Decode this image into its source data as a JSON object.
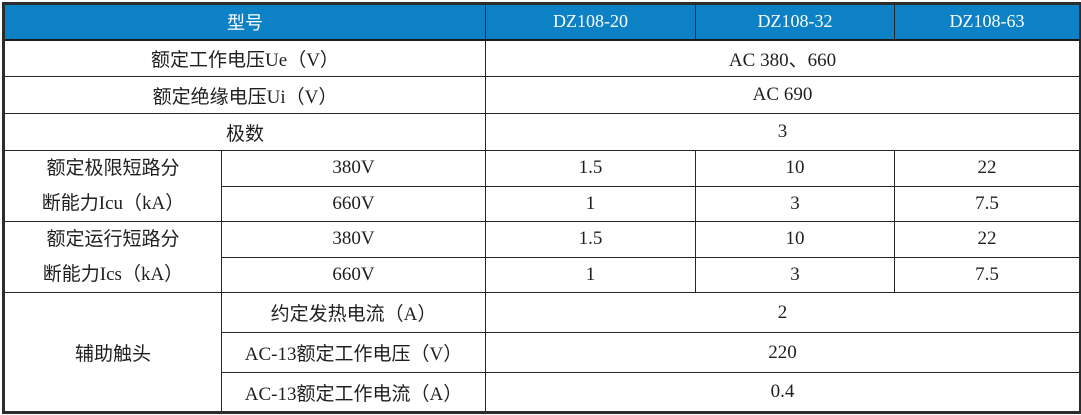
{
  "colors": {
    "header_bg": "#0d81c6",
    "header_text": "#ffffff",
    "border": "#262626",
    "body_text": "#1f1f1f"
  },
  "table": {
    "header": {
      "model_label": "型号",
      "columns": [
        "DZ108-20",
        "DZ108-32",
        "DZ108-63"
      ]
    },
    "rows": {
      "ue": {
        "label": "额定工作电压Ue（V）",
        "value": "AC 380、660"
      },
      "ui": {
        "label": "额定绝缘电压Ui（V）",
        "value": "AC 690"
      },
      "poles": {
        "label": "极数",
        "value": "3"
      },
      "icu": {
        "label_line1": "额定极限短路分",
        "label_line2": "断能力Icu（kA）",
        "sub": [
          {
            "voltage": "380V",
            "values": [
              "1.5",
              "10",
              "22"
            ]
          },
          {
            "voltage": "660V",
            "values": [
              "1",
              "3",
              "7.5"
            ]
          }
        ]
      },
      "ics": {
        "label_line1": "额定运行短路分",
        "label_line2": "断能力Ics（kA）",
        "sub": [
          {
            "voltage": "380V",
            "values": [
              "1.5",
              "10",
              "22"
            ]
          },
          {
            "voltage": "660V",
            "values": [
              "1",
              "3",
              "7.5"
            ]
          }
        ]
      },
      "aux": {
        "label": "辅助触头",
        "sub": [
          {
            "label": "约定发热电流（A）",
            "value": "2"
          },
          {
            "label": "AC-13额定工作电压（V）",
            "value": "220"
          },
          {
            "label": "AC-13额定工作电流（A）",
            "value": "0.4"
          }
        ]
      }
    }
  }
}
